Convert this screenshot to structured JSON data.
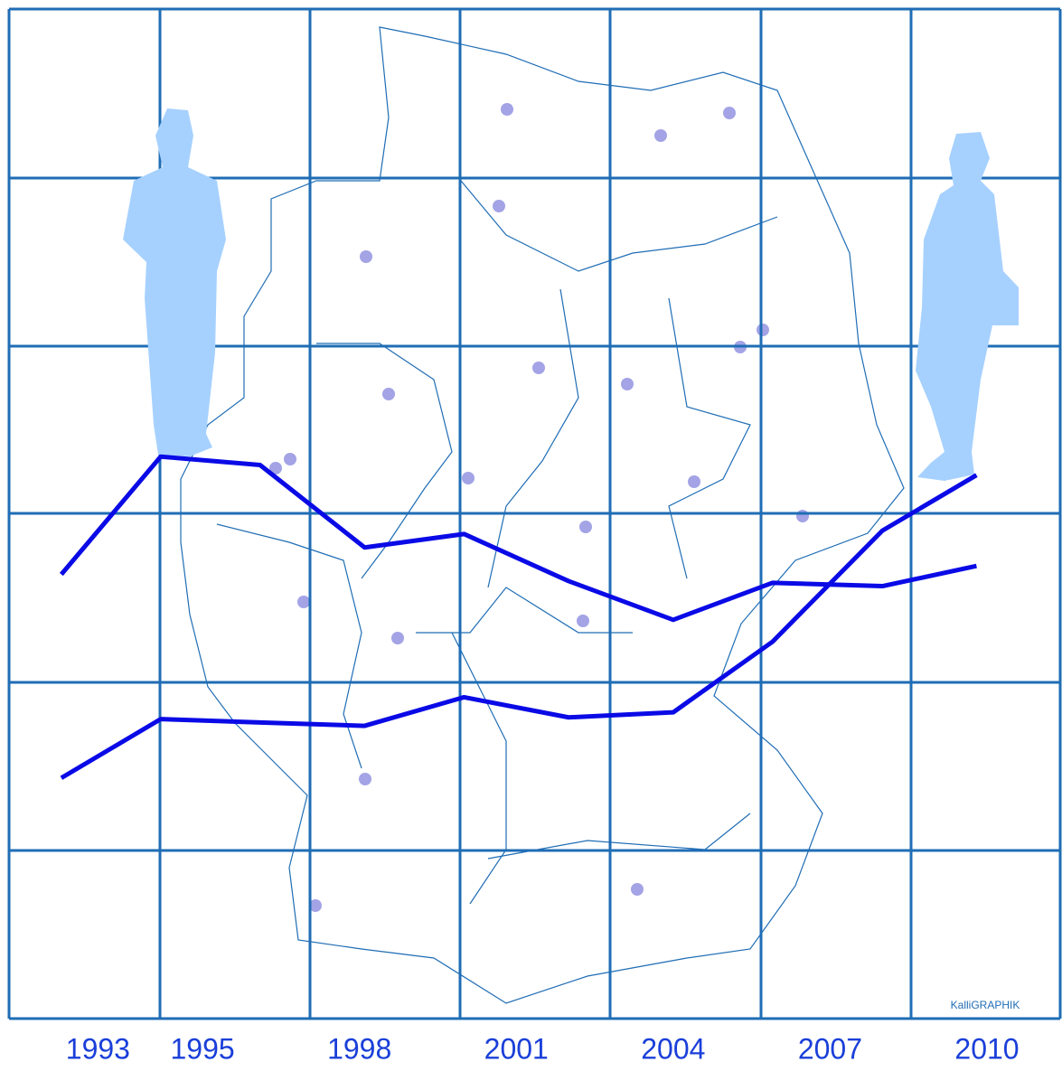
{
  "chart_data": {
    "type": "line",
    "x": [
      1992.3,
      1994.2,
      1996.1,
      1998.1,
      2000.0,
      2002.0,
      2004.0,
      2005.9,
      2008.0,
      2009.8
    ],
    "series": [
      {
        "color": "#0a0ae6",
        "values": [
          2.64,
          3.34,
          3.29,
          2.8,
          2.88,
          2.6,
          2.37,
          2.59,
          2.57,
          2.69
        ]
      },
      {
        "color": "#0a0ae6",
        "values": [
          1.43,
          1.78,
          1.76,
          1.74,
          1.91,
          1.79,
          1.82,
          2.24,
          2.9,
          3.23
        ]
      }
    ],
    "xlim": [
      1991.3,
      2011.4
    ],
    "ylim": [
      0,
      6
    ],
    "xticks": [
      1993,
      1995,
      1998,
      2001,
      2004,
      2007,
      2010
    ],
    "credit": "KalliGRAPHIK"
  }
}
